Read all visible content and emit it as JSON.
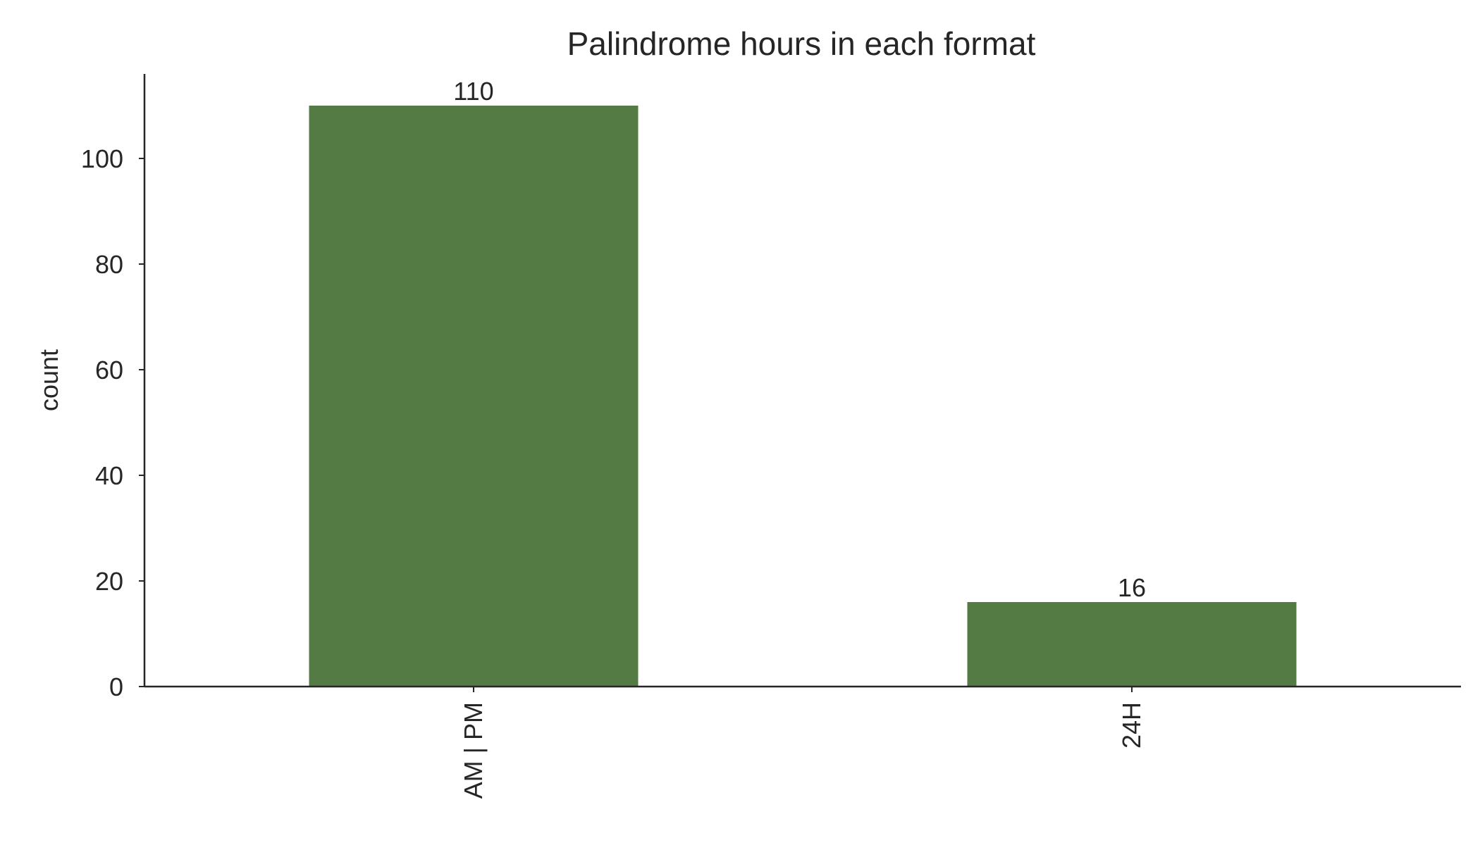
{
  "chart_data": {
    "type": "bar",
    "title": "Palindrome hours in each format",
    "xlabel": "",
    "ylabel": "count",
    "categories": [
      "AM | PM",
      "24H"
    ],
    "values": [
      110,
      16
    ],
    "bar_labels": [
      "110",
      "16"
    ],
    "ylim": [
      0,
      116
    ],
    "yticks": [
      0,
      20,
      40,
      60,
      80,
      100
    ],
    "ytick_labels": [
      "0",
      "20",
      "40",
      "60",
      "80",
      "100"
    ],
    "xtick_rotation": "vertical",
    "grid": false,
    "legend": "none",
    "colors": {
      "bar": "#557b45",
      "axis": "#262626",
      "text": "#262626"
    }
  }
}
